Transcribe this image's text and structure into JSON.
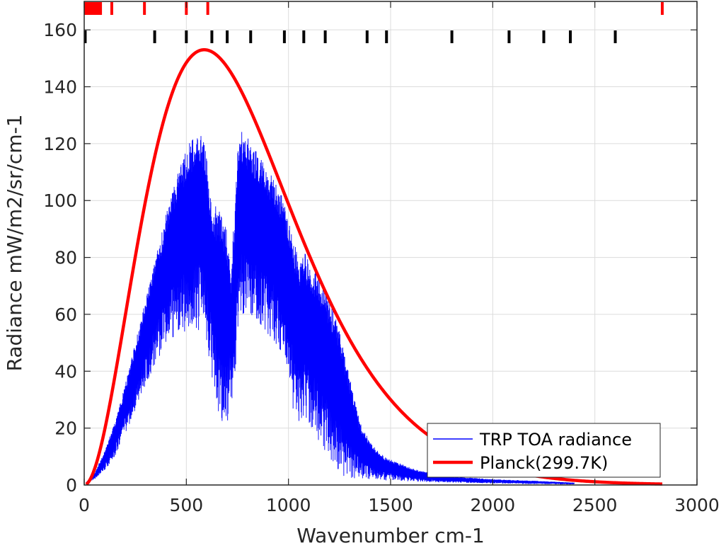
{
  "chart_data": {
    "type": "line",
    "title": "",
    "xlabel": "Wavenumber cm-1",
    "ylabel": "Radiance mW/m2/sr/cm-1",
    "xlim": [
      0,
      3000
    ],
    "ylim": [
      0,
      170
    ],
    "xticks": [
      0,
      500,
      1000,
      1500,
      2000,
      2500,
      3000
    ],
    "yticks": [
      0,
      20,
      40,
      60,
      80,
      100,
      120,
      140,
      160
    ],
    "xtick_labels": [
      "0",
      "500",
      "1000",
      "1500",
      "2000",
      "2500",
      "3000"
    ],
    "ytick_labels": [
      "0",
      "20",
      "40",
      "60",
      "80",
      "100",
      "120",
      "140",
      "160"
    ],
    "grid": true,
    "legend_position": "bottom-right",
    "series": [
      {
        "name": "TRP TOA radiance",
        "color": "#0000ff",
        "style": "thin-line",
        "upper_envelope": [
          [
            10,
            1
          ],
          [
            50,
            4
          ],
          [
            100,
            12
          ],
          [
            150,
            22
          ],
          [
            200,
            35
          ],
          [
            250,
            50
          ],
          [
            300,
            65
          ],
          [
            350,
            80
          ],
          [
            400,
            95
          ],
          [
            450,
            108
          ],
          [
            500,
            118
          ],
          [
            550,
            125
          ],
          [
            570,
            127
          ],
          [
            600,
            118
          ],
          [
            620,
            100
          ],
          [
            650,
            98
          ],
          [
            680,
            96
          ],
          [
            700,
            90
          ],
          [
            720,
            75
          ],
          [
            740,
            105
          ],
          [
            760,
            126
          ],
          [
            800,
            122
          ],
          [
            850,
            117
          ],
          [
            900,
            111
          ],
          [
            950,
            104
          ],
          [
            980,
            100
          ],
          [
            1000,
            93
          ],
          [
            1020,
            88
          ],
          [
            1050,
            80
          ],
          [
            1080,
            83
          ],
          [
            1100,
            79
          ],
          [
            1150,
            73
          ],
          [
            1200,
            66
          ],
          [
            1250,
            55
          ],
          [
            1300,
            38
          ],
          [
            1350,
            22
          ],
          [
            1400,
            15
          ],
          [
            1450,
            11
          ],
          [
            1500,
            9
          ],
          [
            1600,
            6
          ],
          [
            1700,
            4
          ],
          [
            1800,
            3
          ],
          [
            2000,
            2
          ],
          [
            2200,
            1.5
          ],
          [
            2400,
            0.8
          ]
        ],
        "lower_envelope": [
          [
            10,
            0.5
          ],
          [
            50,
            2
          ],
          [
            100,
            5
          ],
          [
            150,
            10
          ],
          [
            200,
            18
          ],
          [
            250,
            26
          ],
          [
            300,
            35
          ],
          [
            350,
            43
          ],
          [
            400,
            49
          ],
          [
            450,
            53
          ],
          [
            500,
            54
          ],
          [
            550,
            54
          ],
          [
            580,
            52
          ],
          [
            600,
            45
          ],
          [
            620,
            40
          ],
          [
            640,
            32
          ],
          [
            660,
            22
          ],
          [
            680,
            19
          ],
          [
            700,
            19
          ],
          [
            710,
            30
          ],
          [
            730,
            30
          ],
          [
            760,
            60
          ],
          [
            800,
            60
          ],
          [
            850,
            57
          ],
          [
            900,
            53
          ],
          [
            950,
            48
          ],
          [
            980,
            43
          ],
          [
            1000,
            38
          ],
          [
            1020,
            26
          ],
          [
            1050,
            20
          ],
          [
            1070,
            19
          ],
          [
            1080,
            22
          ],
          [
            1100,
            20
          ],
          [
            1150,
            15
          ],
          [
            1200,
            10
          ],
          [
            1240,
            5
          ],
          [
            1260,
            3
          ],
          [
            1300,
            2.5
          ],
          [
            1400,
            2
          ],
          [
            1500,
            1.5
          ],
          [
            1700,
            1
          ],
          [
            2000,
            0.5
          ],
          [
            2400,
            0.2
          ]
        ]
      },
      {
        "name": "Planck(299.7K)",
        "color": "#ff0000",
        "style": "thick-line",
        "temperature_K": 299.7,
        "x_range": [
          10,
          2830
        ]
      }
    ],
    "rug_top_red": [
      5,
      12,
      18,
      25,
      32,
      38,
      42,
      48,
      55,
      62,
      68,
      75,
      80,
      135,
      295,
      500,
      605,
      2830
    ],
    "rug_top_black": [
      5,
      345,
      500,
      625,
      700,
      815,
      980,
      1075,
      1180,
      1385,
      1480,
      1800,
      2080,
      2250,
      2380,
      2600
    ]
  }
}
